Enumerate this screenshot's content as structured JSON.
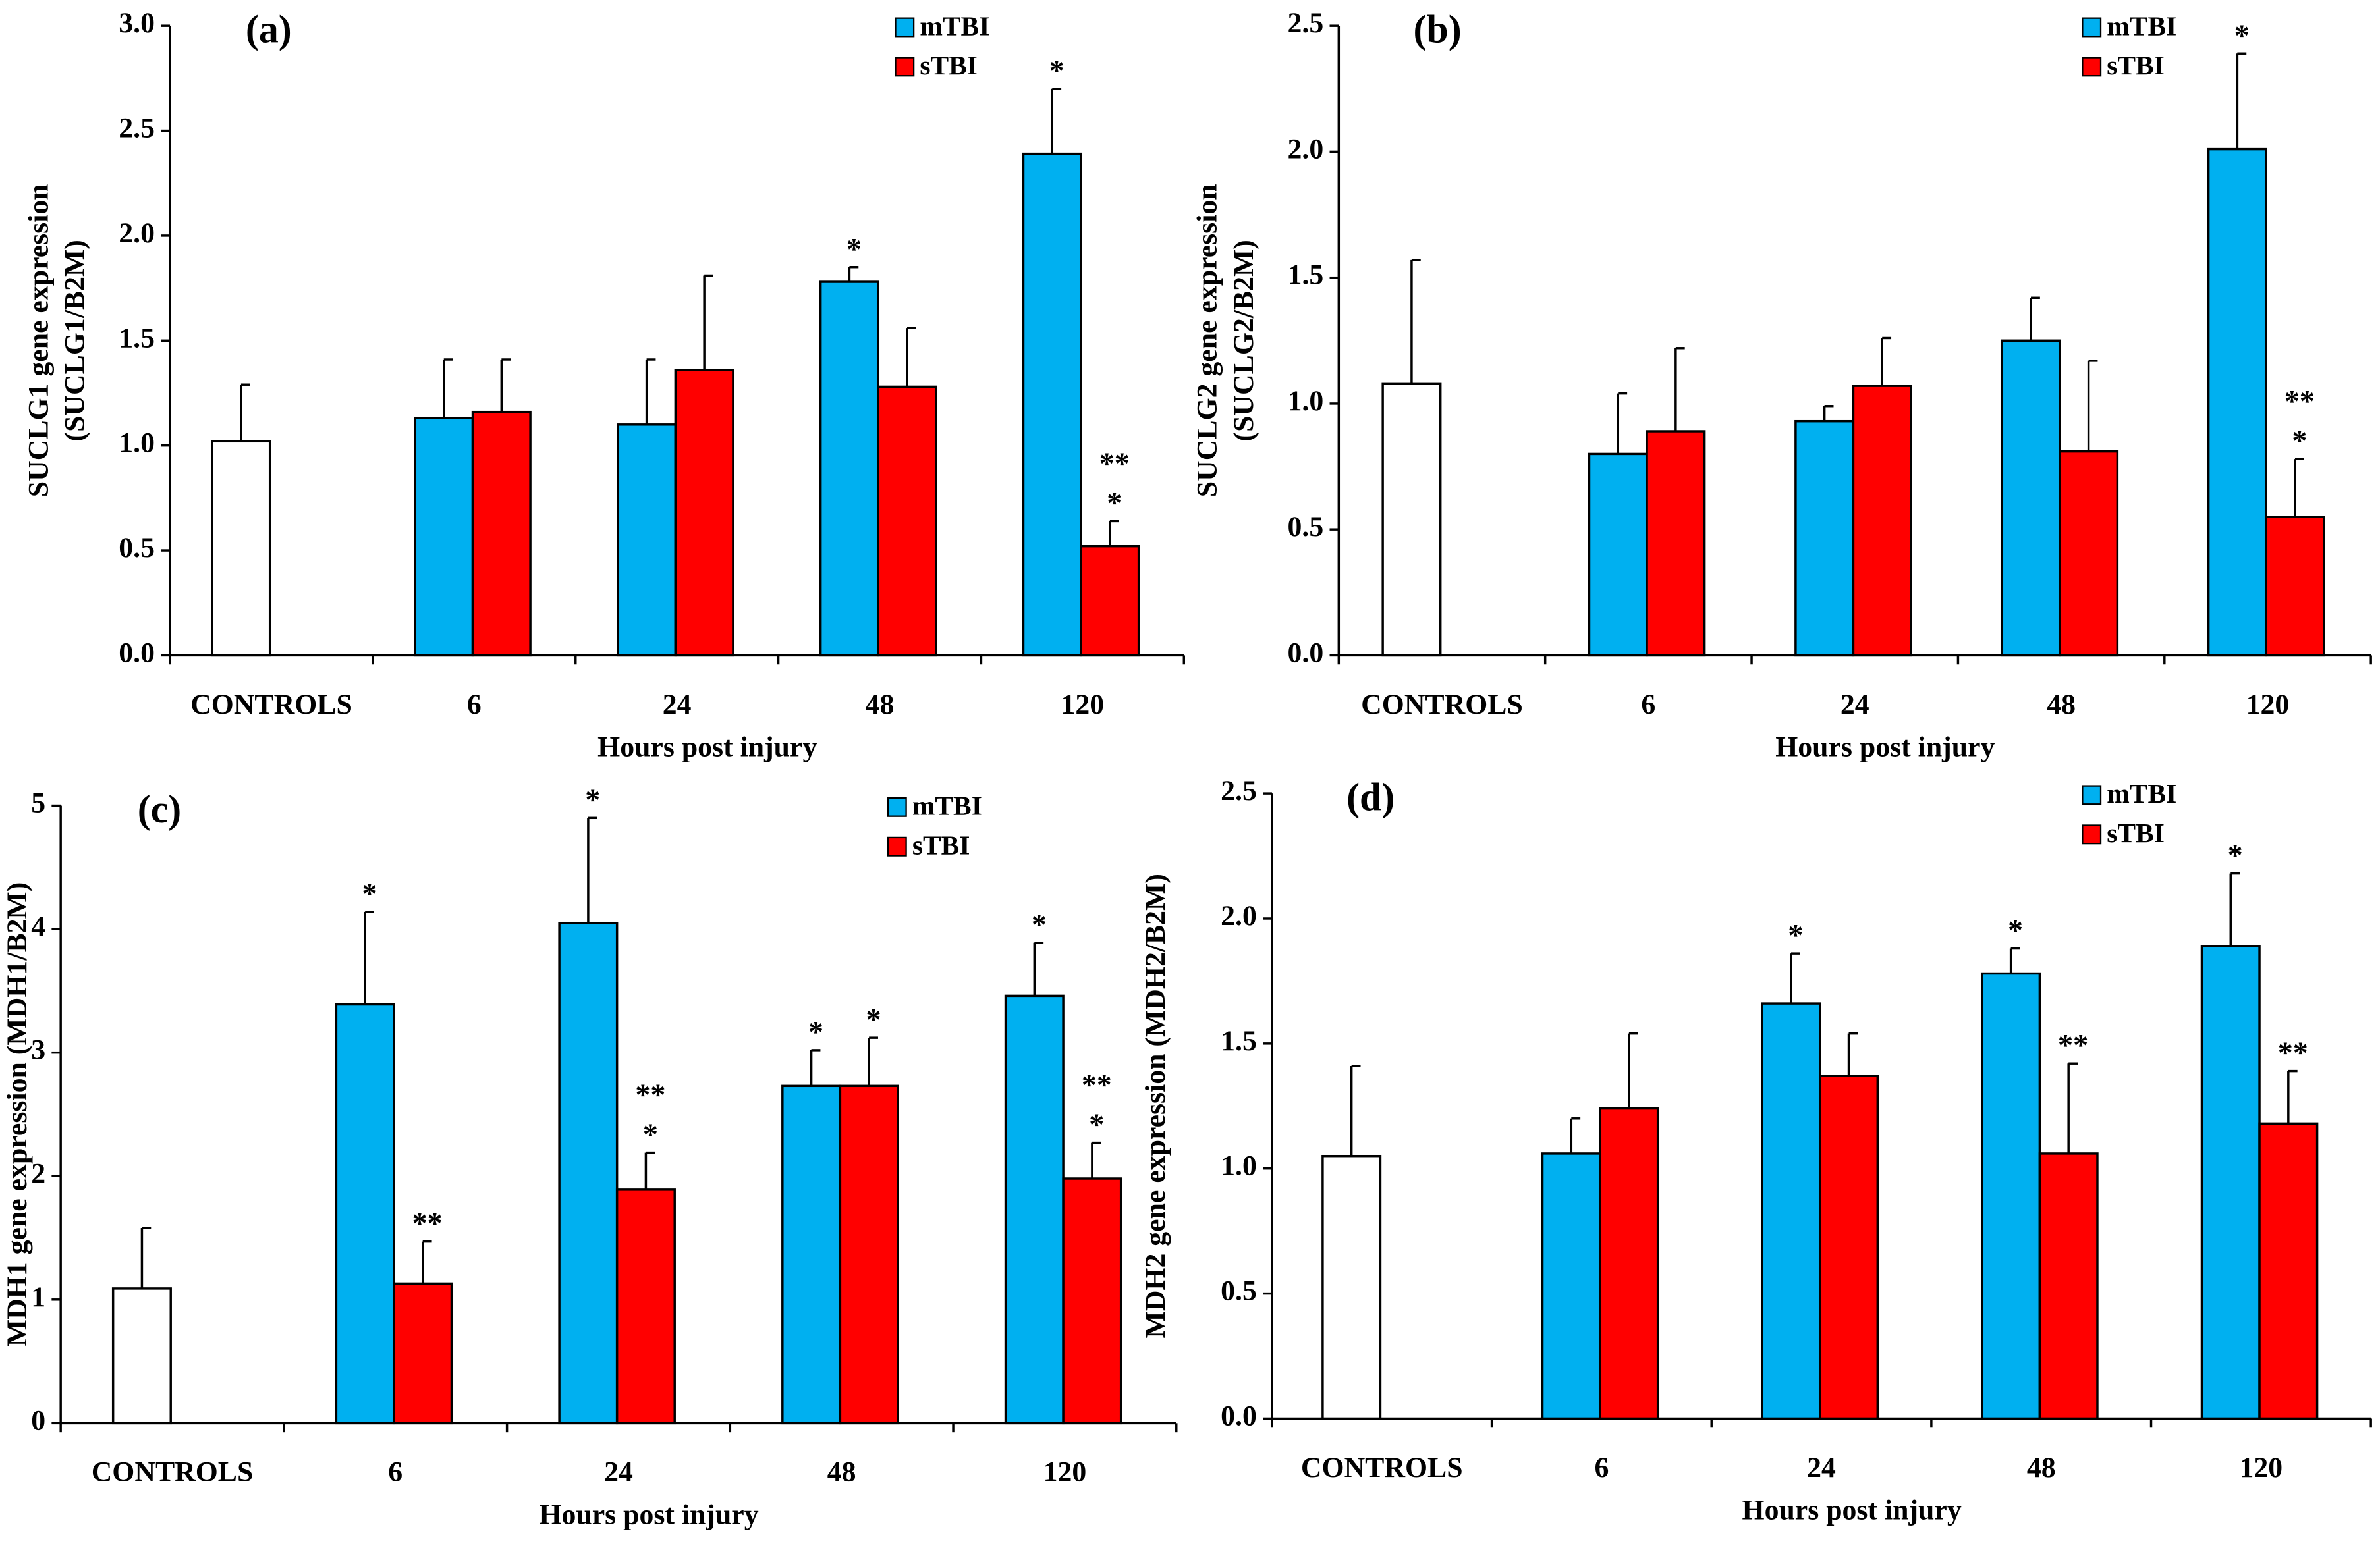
{
  "chart_data": [
    {
      "type": "bar",
      "title": "(a)",
      "ylabel": [
        "SUCLG1 gene expression",
        "(SUCLG1/B2M)"
      ],
      "xlabel": "Hours post injury",
      "categories": [
        "CONTROLS",
        "6",
        "24",
        "48",
        "120"
      ],
      "controls": {
        "value": 1.02,
        "error": 0.27,
        "color": "#ffffff"
      },
      "series": [
        {
          "name": "mTBI",
          "color": "#00b0f0",
          "values": [
            null,
            1.13,
            1.1,
            1.78,
            2.39
          ],
          "errors": [
            null,
            0.28,
            0.31,
            0.07,
            0.31
          ],
          "annotations": [
            null,
            null,
            null,
            "*",
            "*"
          ]
        },
        {
          "name": "sTBI",
          "color": "#ff0000",
          "values": [
            null,
            1.16,
            1.36,
            1.28,
            0.52
          ],
          "errors": [
            null,
            0.25,
            0.45,
            0.28,
            0.12
          ],
          "annotations": [
            null,
            null,
            null,
            null,
            [
              "**",
              "*"
            ]
          ]
        }
      ],
      "ylim": [
        0,
        3
      ],
      "yticks": [
        {
          "value": 0,
          "label": "0.0"
        },
        {
          "value": 0.5,
          "label": "0.5"
        },
        {
          "value": 1,
          "label": "1.0"
        },
        {
          "value": 1.5,
          "label": "1.5"
        },
        {
          "value": 2,
          "label": "2.0"
        },
        {
          "value": 2.5,
          "label": "2.5"
        },
        {
          "value": 3,
          "label": "3.0"
        }
      ]
    },
    {
      "type": "bar",
      "title": "(b)",
      "ylabel": [
        "SUCLG2 gene expression",
        "(SUCLG2/B2M)"
      ],
      "xlabel": "Hours post injury",
      "categories": [
        "CONTROLS",
        "6",
        "24",
        "48",
        "120"
      ],
      "controls": {
        "value": 1.08,
        "error": 0.49,
        "color": "#ffffff"
      },
      "series": [
        {
          "name": "mTBI",
          "color": "#00b0f0",
          "values": [
            null,
            0.8,
            0.93,
            1.25,
            2.01
          ],
          "errors": [
            null,
            0.24,
            0.06,
            0.17,
            0.38
          ],
          "annotations": [
            null,
            null,
            null,
            null,
            "*"
          ]
        },
        {
          "name": "sTBI",
          "color": "#ff0000",
          "values": [
            null,
            0.89,
            1.07,
            0.81,
            0.55
          ],
          "errors": [
            null,
            0.33,
            0.19,
            0.36,
            0.23
          ],
          "annotations": [
            null,
            null,
            null,
            null,
            [
              "**",
              "*"
            ]
          ]
        }
      ],
      "ylim": [
        0,
        2.5
      ],
      "yticks": [
        {
          "value": 0,
          "label": "0.0"
        },
        {
          "value": 0.5,
          "label": "0.5"
        },
        {
          "value": 1,
          "label": "1.0"
        },
        {
          "value": 1.5,
          "label": "1.5"
        },
        {
          "value": 2,
          "label": "2.0"
        },
        {
          "value": 2.5,
          "label": "2.5"
        }
      ]
    },
    {
      "type": "bar",
      "title": "(c)",
      "ylabel": [
        "MDH1 gene expression (MDH1/B2M)"
      ],
      "xlabel": "Hours post injury",
      "categories": [
        "CONTROLS",
        "6",
        "24",
        "48",
        "120"
      ],
      "controls": {
        "value": 1.09,
        "error": 0.49,
        "color": "#ffffff"
      },
      "series": [
        {
          "name": "mTBI",
          "color": "#00b0f0",
          "values": [
            null,
            3.39,
            4.05,
            2.73,
            3.46
          ],
          "errors": [
            null,
            0.75,
            0.85,
            0.29,
            0.43
          ],
          "annotations": [
            null,
            "*",
            "*",
            "*",
            "*"
          ]
        },
        {
          "name": "sTBI",
          "color": "#ff0000",
          "values": [
            null,
            1.13,
            1.89,
            2.73,
            1.98
          ],
          "errors": [
            null,
            0.34,
            0.3,
            0.39,
            0.29
          ],
          "annotations": [
            null,
            "**",
            [
              "**",
              "*"
            ],
            "*",
            [
              "**",
              "*"
            ]
          ]
        }
      ],
      "ylim": [
        0,
        5
      ],
      "yticks": [
        0,
        1,
        2,
        3,
        4,
        5
      ]
    },
    {
      "type": "bar",
      "title": "(d)",
      "ylabel": [
        "MDH2 gene expression (MDH2/B2M)"
      ],
      "xlabel": "Hours post injury",
      "categories": [
        "CONTROLS",
        "6",
        "24",
        "48",
        "120"
      ],
      "controls": {
        "value": 1.05,
        "error": 0.36,
        "color": "#ffffff"
      },
      "series": [
        {
          "name": "mTBI",
          "color": "#00b0f0",
          "values": [
            null,
            1.06,
            1.66,
            1.78,
            1.89
          ],
          "errors": [
            null,
            0.14,
            0.2,
            0.1,
            0.29
          ],
          "annotations": [
            null,
            null,
            "*",
            "*",
            "*"
          ]
        },
        {
          "name": "sTBI",
          "color": "#ff0000",
          "values": [
            null,
            1.24,
            1.37,
            1.06,
            1.18
          ],
          "errors": [
            null,
            0.3,
            0.17,
            0.36,
            0.21
          ],
          "annotations": [
            null,
            null,
            null,
            "**",
            "**"
          ]
        }
      ],
      "ylim": [
        0,
        2.5
      ],
      "yticks": [
        {
          "value": 0,
          "label": "0.0"
        },
        {
          "value": 0.5,
          "label": "0.5"
        },
        {
          "value": 1,
          "label": "1.0"
        },
        {
          "value": 1.5,
          "label": "1.5"
        },
        {
          "value": 2,
          "label": "2.0"
        },
        {
          "value": 2.5,
          "label": "2.5"
        }
      ]
    }
  ]
}
